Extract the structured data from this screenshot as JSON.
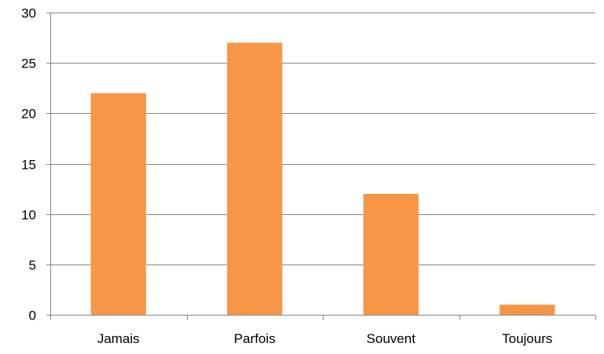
{
  "chart_data": {
    "type": "bar",
    "title": "",
    "xlabel": "",
    "ylabel": "",
    "categories": [
      "Jamais",
      "Parfois",
      "Souvent",
      "Toujours"
    ],
    "values": [
      22,
      27,
      12,
      1
    ],
    "ylim": [
      0,
      30
    ],
    "yticks": [
      "0",
      "5",
      "10",
      "15",
      "20",
      "25",
      "30"
    ],
    "grid": true,
    "legend": "none",
    "bar_color": "#F79646",
    "grid_color": "#868686"
  }
}
